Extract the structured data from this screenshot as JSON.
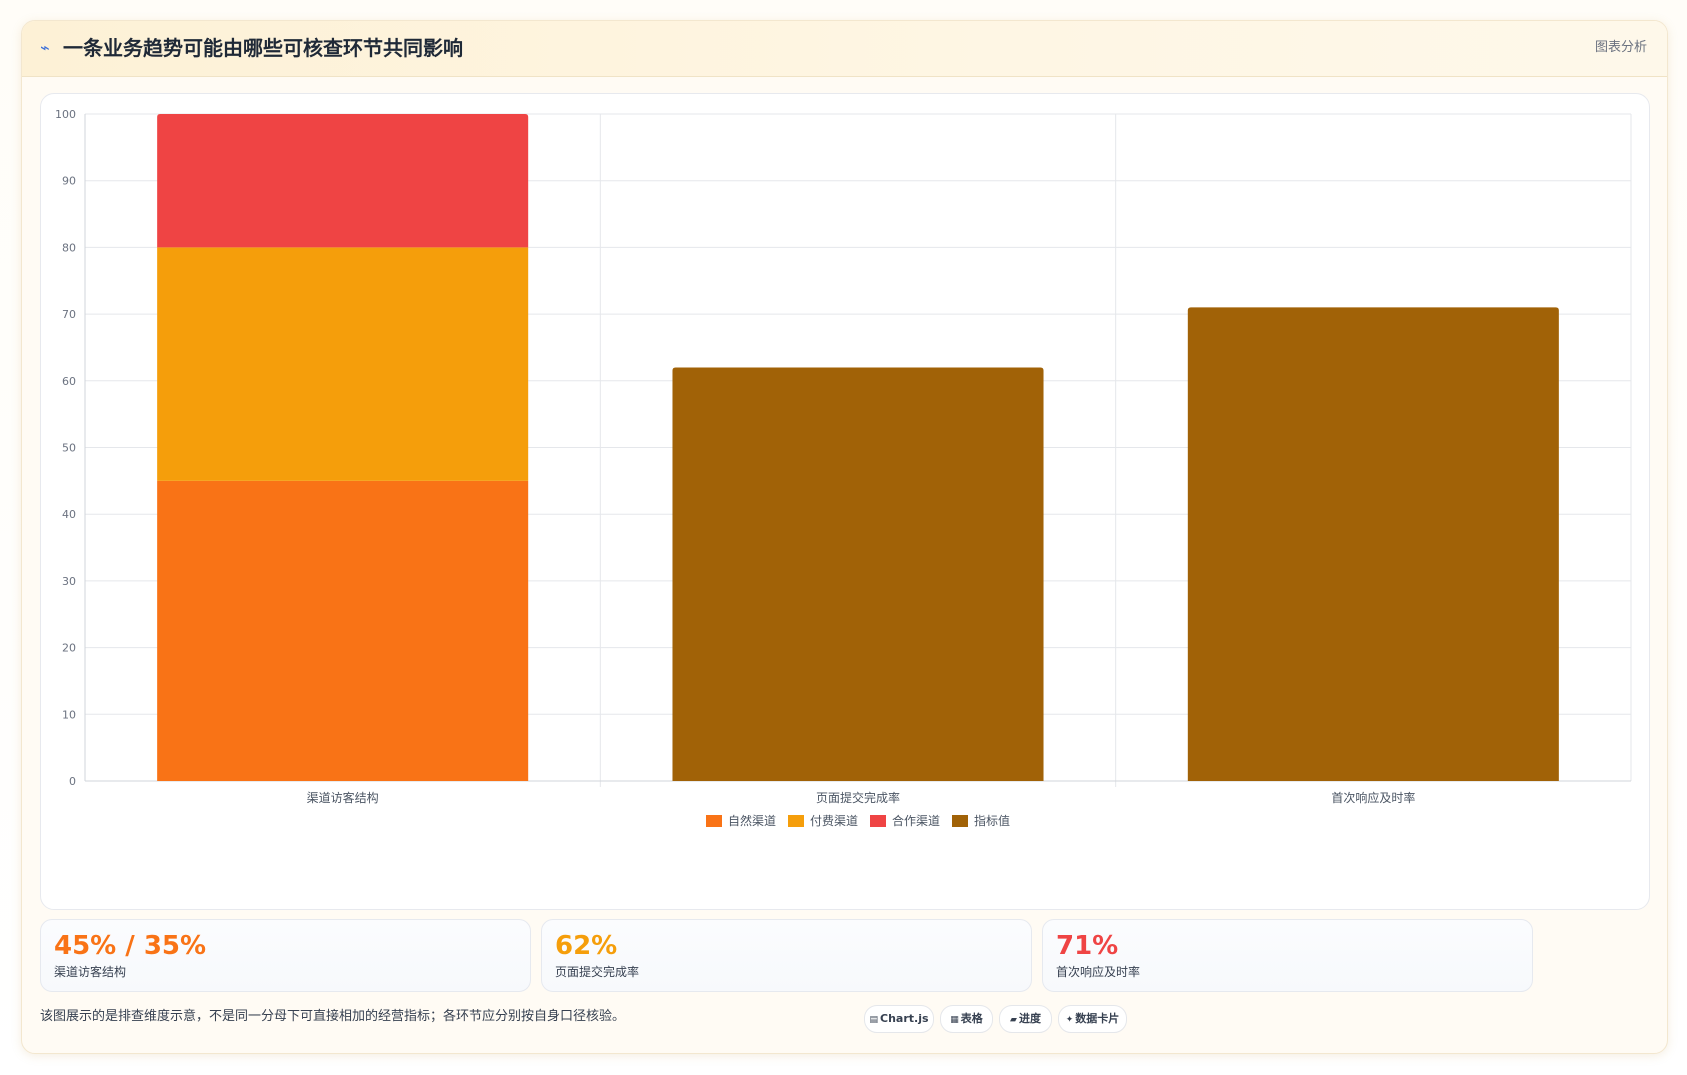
{
  "header": {
    "icon": "trend-line-icon",
    "title": "一条业务趋势可能由哪些可核查环节共同影响",
    "tag": "图表分析"
  },
  "chart_data": {
    "type": "bar",
    "stacked": true,
    "categories": [
      "渠道访客结构",
      "页面提交完成率",
      "首次响应及时率"
    ],
    "series": [
      {
        "name": "自然渠道",
        "color": "#f97316",
        "values": [
          45,
          null,
          null
        ]
      },
      {
        "name": "付费渠道",
        "color": "#f59e0b",
        "values": [
          35,
          null,
          null
        ]
      },
      {
        "name": "合作渠道",
        "color": "#ef4444",
        "values": [
          20,
          null,
          null
        ]
      },
      {
        "name": "指标值",
        "color": "#a16207",
        "values": [
          null,
          62,
          71
        ]
      }
    ],
    "ylim": [
      0,
      100
    ],
    "yticks": [
      0,
      10,
      20,
      30,
      40,
      50,
      60,
      70,
      80,
      90,
      100
    ],
    "grid": true,
    "legend_position": "bottom"
  },
  "stats": [
    {
      "value": "45% / 35%",
      "label": "渠道访客结构",
      "color": "#f97316"
    },
    {
      "value": "62%",
      "label": "页面提交完成率",
      "color": "#f59e0b"
    },
    {
      "value": "71%",
      "label": "首次响应及时率",
      "color": "#ef4444"
    }
  ],
  "footnote": "该图展示的是排查维度示意，不是同一分母下可直接相加的经营指标；各环节应分别按自身口径核验。",
  "pills": [
    {
      "icon": "chart-icon",
      "glyph": "▤",
      "label": "Chart.js"
    },
    {
      "icon": "table-icon",
      "glyph": "▦",
      "label": "表格"
    },
    {
      "icon": "progress-icon",
      "glyph": "▰",
      "label": "进度"
    },
    {
      "icon": "sparkle-icon",
      "glyph": "✦",
      "label": "数据卡片"
    }
  ]
}
